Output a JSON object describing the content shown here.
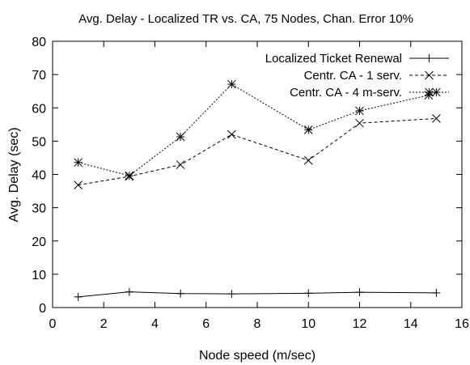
{
  "chart_data": {
    "type": "line",
    "title": "Avg. Delay - Localized TR vs. CA, 75 Nodes, Chan. Error 10%",
    "xlabel": "Node speed (m/sec)",
    "ylabel": "Avg. Delay (sec)",
    "xlim": [
      0,
      16
    ],
    "ylim": [
      0,
      80
    ],
    "xticks": [
      0,
      2,
      4,
      6,
      8,
      10,
      12,
      14,
      16
    ],
    "yticks": [
      0,
      10,
      20,
      30,
      40,
      50,
      60,
      70,
      80
    ],
    "grid": false,
    "legend_position": "top-right",
    "series": [
      {
        "name": "Localized Ticket Renewal",
        "marker": "plus",
        "line": "solid",
        "x": [
          1,
          3,
          5,
          7,
          10,
          12,
          15
        ],
        "y": [
          3.2,
          4.7,
          4.2,
          4.1,
          4.3,
          4.6,
          4.4
        ]
      },
      {
        "name": "Centr. CA - 1 serv.",
        "marker": "cross",
        "line": "dashed",
        "x": [
          1,
          3,
          5,
          7,
          10,
          12,
          15
        ],
        "y": [
          36.8,
          39.4,
          42.9,
          52.0,
          44.2,
          55.4,
          56.8
        ]
      },
      {
        "name": "Centr. CA - 4 m-serv.",
        "marker": "star",
        "line": "dotted",
        "x": [
          1,
          3,
          5,
          7,
          10,
          12,
          14.7,
          15
        ],
        "y": [
          43.6,
          39.6,
          51.3,
          67.1,
          53.4,
          59.1,
          63.8,
          64.7
        ]
      }
    ]
  }
}
